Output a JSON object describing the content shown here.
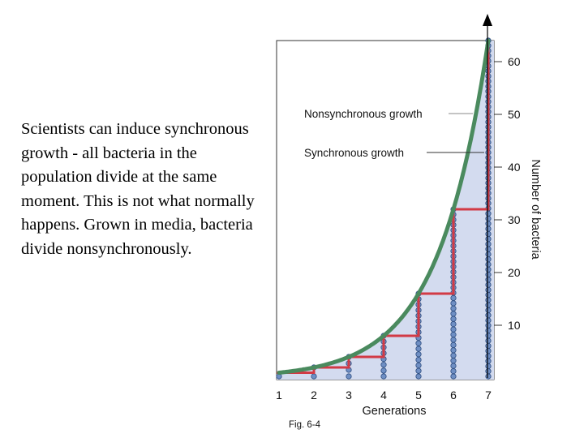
{
  "slide": {
    "body_text": "Scientists can induce synchronous growth - all bacteria in the population divide at the same moment. This is not what normally happens.  Grown in media, bacteria divide nonsynchronously.",
    "fig_label": "Fig. 6-4"
  },
  "colors": {
    "fill": "#d3dbef",
    "curve": "#4a8a5e",
    "step": "#d23a45",
    "dot": "#6f8fc4",
    "dot_stroke": "#2b4b7e"
  },
  "chart_data": {
    "type": "line",
    "xlabel": "Generations",
    "ylabel": "Number of bacteria",
    "x_ticks": [
      1,
      2,
      3,
      4,
      5,
      6,
      7
    ],
    "y_ticks": [
      10,
      20,
      30,
      40,
      50,
      60
    ],
    "xlim": [
      1,
      7
    ],
    "ylim": [
      0,
      64
    ],
    "y_axis_side": "right",
    "series": [
      {
        "name": "Nonsynchronous growth",
        "style": "smooth-curve",
        "x": [
          1,
          2,
          3,
          4,
          5,
          6,
          7
        ],
        "y": [
          1,
          2,
          4,
          8,
          16,
          32,
          64
        ]
      },
      {
        "name": "Synchronous growth",
        "style": "step",
        "x": [
          1,
          2,
          3,
          4,
          5,
          6,
          7
        ],
        "y": [
          1,
          2,
          4,
          8,
          16,
          32,
          64
        ]
      }
    ],
    "annotations": [
      "Nonsynchronous growth",
      "Synchronous growth"
    ]
  }
}
